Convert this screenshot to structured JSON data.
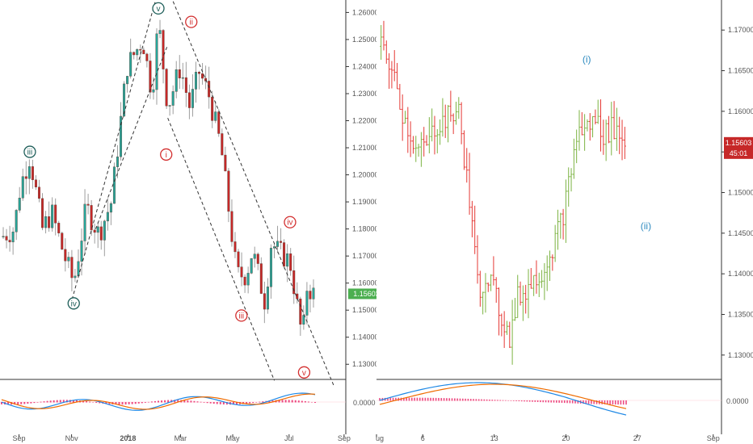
{
  "colors": {
    "up": "#26a69a",
    "down": "#c62828",
    "shadow": "#9e9e9e",
    "teal_label": "#1f5f5a",
    "red_label": "#d32f2f",
    "blue_label": "#2e8bc0",
    "price_tag_left": "#4caf50",
    "price_tag_right": "#c62828",
    "macd": "#1e88e5",
    "signal": "#ef6c00",
    "hist": "#e91e63",
    "grid_axis": "#333333"
  },
  "chart_data": [
    {
      "type": "candlestick",
      "panel": "left",
      "price_axis": {
        "ylim": [
          1.125,
          1.264
        ],
        "ticks": [
          "1.26000",
          "1.25000",
          "1.24000",
          "1.23000",
          "1.22000",
          "1.21000",
          "1.20000",
          "1.19000",
          "1.18000",
          "1.17000",
          "1.16000",
          "1.15000",
          "1.14000",
          "1.13000"
        ],
        "tick_values": [
          1.26,
          1.25,
          1.24,
          1.23,
          1.22,
          1.21,
          1.2,
          1.19,
          1.18,
          1.17,
          1.16,
          1.15,
          1.14,
          1.13
        ],
        "last_price_label": "1.15603",
        "last_price": 1.15603
      },
      "x_axis": {
        "ticks": [
          "Sep",
          "Nov",
          "2018",
          "Mar",
          "May",
          "Jul",
          "Sep"
        ],
        "tick_positions": [
          0.055,
          0.207,
          0.37,
          0.522,
          0.673,
          0.836,
          0.995
        ]
      },
      "anchors": [
        [
          0.0,
          1.177
        ],
        [
          0.04,
          1.18
        ],
        [
          0.06,
          1.196
        ],
        [
          0.09,
          1.207
        ],
        [
          0.13,
          1.18
        ],
        [
          0.16,
          1.186
        ],
        [
          0.2,
          1.17
        ],
        [
          0.23,
          1.16
        ],
        [
          0.27,
          1.188
        ],
        [
          0.31,
          1.178
        ],
        [
          0.35,
          1.19
        ],
        [
          0.4,
          1.24
        ],
        [
          0.45,
          1.25
        ],
        [
          0.48,
          1.23
        ],
        [
          0.5,
          1.257
        ],
        [
          0.53,
          1.225
        ],
        [
          0.57,
          1.24
        ],
        [
          0.6,
          1.225
        ],
        [
          0.63,
          1.238
        ],
        [
          0.66,
          1.23
        ],
        [
          0.7,
          1.21
        ],
        [
          0.75,
          1.163
        ],
        [
          0.78,
          1.163
        ],
        [
          0.8,
          1.172
        ],
        [
          0.84,
          1.153
        ],
        [
          0.86,
          1.175
        ],
        [
          0.88,
          1.172
        ],
        [
          0.92,
          1.168
        ],
        [
          0.96,
          1.139
        ],
        [
          0.975,
          1.16
        ],
        [
          0.99,
          1.156
        ]
      ],
      "candle_count": 96,
      "wave_labels": [
        {
          "text": "iii",
          "x": 0.09,
          "y": 1.2085,
          "color": "teal"
        },
        {
          "text": "iv",
          "x": 0.23,
          "y": 1.1525,
          "color": "teal"
        },
        {
          "text": "v",
          "x": 0.5,
          "y": 1.2615,
          "color": "teal"
        },
        {
          "text": "ii",
          "x": 0.605,
          "y": 1.2565,
          "color": "red"
        },
        {
          "text": "i",
          "x": 0.525,
          "y": 1.2075,
          "color": "red"
        },
        {
          "text": "iii",
          "x": 0.765,
          "y": 1.148,
          "color": "red"
        },
        {
          "text": "iv",
          "x": 0.92,
          "y": 1.1825,
          "color": "red"
        },
        {
          "text": "v",
          "x": 0.965,
          "y": 1.127,
          "color": "red"
        }
      ],
      "macd_axis": {
        "ticks": [
          "0.0000"
        ]
      }
    },
    {
      "type": "ohlc",
      "panel": "right",
      "price_axis": {
        "ylim": [
          1.1272,
          1.1735
        ],
        "ticks": [
          "1.17000",
          "1.16500",
          "1.16000",
          "1.15500",
          "1.15000",
          "1.14500",
          "1.14000",
          "1.13500",
          "1.13000"
        ],
        "tick_values": [
          1.17,
          1.165,
          1.16,
          1.155,
          1.15,
          1.145,
          1.14,
          1.135,
          1.13
        ],
        "last_price_label": "1.15603",
        "last_price": 1.15603,
        "countdown_label": "45:01"
      },
      "x_axis": {
        "ticks": [
          "ug",
          "6",
          "13",
          "20",
          "27",
          "Sep"
        ],
        "tick_positions": [
          0.0,
          0.134,
          0.341,
          0.549,
          0.756,
          0.976
        ]
      },
      "anchors": [
        [
          0.0,
          1.168
        ],
        [
          0.04,
          1.166
        ],
        [
          0.09,
          1.16
        ],
        [
          0.15,
          1.155
        ],
        [
          0.2,
          1.156
        ],
        [
          0.22,
          1.158
        ],
        [
          0.27,
          1.159
        ],
        [
          0.32,
          1.16
        ],
        [
          0.34,
          1.155
        ],
        [
          0.36,
          1.15
        ],
        [
          0.4,
          1.138
        ],
        [
          0.44,
          1.14
        ],
        [
          0.49,
          1.135
        ],
        [
          0.53,
          1.132
        ],
        [
          0.56,
          1.137
        ],
        [
          0.62,
          1.139
        ],
        [
          0.67,
          1.141
        ],
        [
          0.71,
          1.144
        ],
        [
          0.75,
          1.148
        ],
        [
          0.8,
          1.157
        ],
        [
          0.84,
          1.158
        ],
        [
          0.88,
          1.159
        ],
        [
          0.91,
          1.157
        ],
        [
          0.95,
          1.158
        ],
        [
          1.0,
          1.156
        ]
      ],
      "bar_count": 92,
      "wave_labels": [
        {
          "text": "(i)",
          "x": 0.84,
          "y": 1.166,
          "color": "blue"
        },
        {
          "text": "(ii)",
          "x": 1.08,
          "y": 1.1455,
          "color": "blue"
        }
      ],
      "macd_axis": {
        "ticks": [
          "0.0000"
        ]
      }
    }
  ]
}
